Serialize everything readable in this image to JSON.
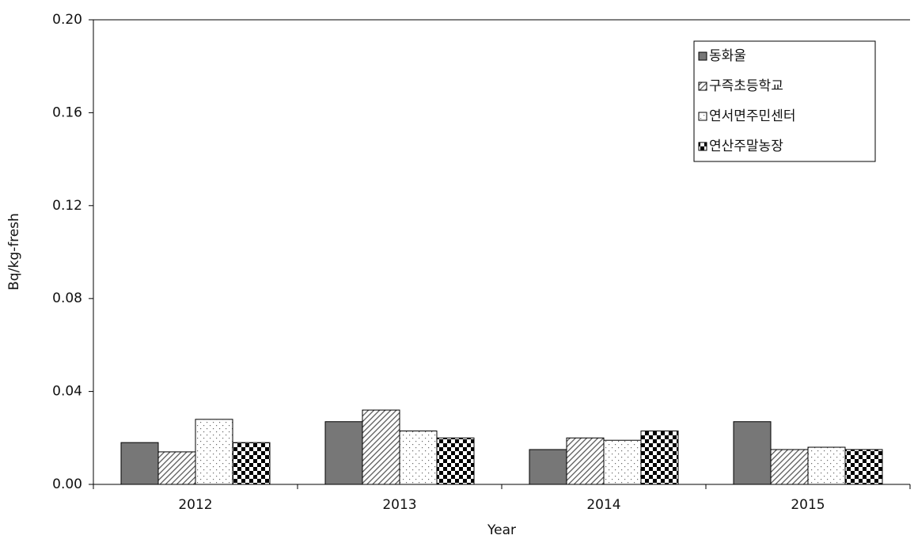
{
  "chart_data": {
    "type": "bar",
    "y_label": "Bq/kg-fresh",
    "x_label": "Year",
    "categories": [
      "2012",
      "2013",
      "2014",
      "2015"
    ],
    "series": [
      {
        "name": "동화울",
        "color": "#777777",
        "pattern": "solid",
        "values": [
          0.018,
          0.027,
          0.015,
          0.027
        ]
      },
      {
        "name": "구즉초등학교",
        "color": "#555555",
        "pattern": "hatch",
        "values": [
          0.014,
          0.032,
          0.02,
          0.015
        ]
      },
      {
        "name": "연서면주민센터",
        "color": "#666666",
        "pattern": "dots",
        "values": [
          0.028,
          0.023,
          0.019,
          0.016
        ]
      },
      {
        "name": "연산주말농장",
        "color": "#000000",
        "pattern": "checker",
        "values": [
          0.018,
          0.02,
          0.023,
          0.015
        ]
      }
    ],
    "ylim": [
      0,
      0.2
    ],
    "yticks": [
      {
        "value": 0,
        "label": "0.00"
      },
      0.04,
      0.08,
      0.12,
      0.16,
      {
        "value": 0.2,
        "label": "0.20"
      }
    ],
    "legend": "upper-right",
    "grid": false
  }
}
